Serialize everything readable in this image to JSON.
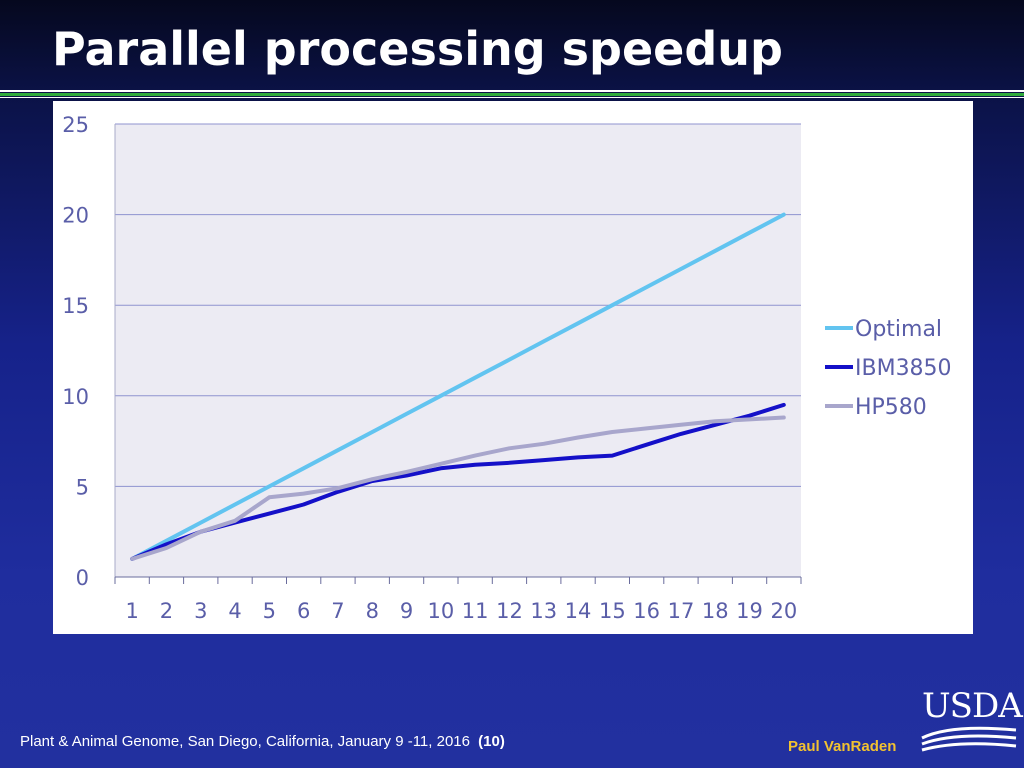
{
  "slide": {
    "title": "Parallel processing speedup",
    "footer": "Plant & Animal Genome, San Diego,  California, January  9 -11, 2016",
    "page_number": "(10)",
    "author": "Paul VanRaden",
    "logo_text": "USDA"
  },
  "colors": {
    "Optimal": "#62c4f0",
    "IBM3850": "#1410c8",
    "HP580": "#a8a6cc",
    "axis_text": "#5a5ea8",
    "plot_bg": "#ecebf3",
    "grid": "#8f93cf"
  },
  "chart_data": {
    "type": "line",
    "title": "",
    "xlabel": "",
    "ylabel": "",
    "categories": [
      "1",
      "2",
      "3",
      "4",
      "5",
      "6",
      "7",
      "8",
      "9",
      "10",
      "11",
      "12",
      "13",
      "14",
      "15",
      "16",
      "17",
      "18",
      "19",
      "20"
    ],
    "ylim": [
      0,
      25
    ],
    "yticks": [
      0,
      5,
      10,
      15,
      20,
      25
    ],
    "grid": true,
    "legend_position": "right",
    "series": [
      {
        "name": "Optimal",
        "values": [
          1,
          2,
          3,
          4,
          5,
          6,
          7,
          8,
          9,
          10,
          11,
          12,
          13,
          14,
          15,
          16,
          17,
          18,
          19,
          20
        ]
      },
      {
        "name": "IBM3850",
        "values": [
          1,
          1.8,
          2.5,
          3.0,
          3.5,
          4.0,
          4.7,
          5.3,
          5.6,
          6.0,
          6.2,
          6.3,
          6.45,
          6.6,
          6.7,
          7.3,
          7.9,
          8.4,
          8.9,
          9.5
        ]
      },
      {
        "name": "HP580",
        "values": [
          1,
          1.6,
          2.5,
          3.1,
          4.4,
          4.6,
          4.9,
          5.4,
          5.8,
          6.25,
          6.7,
          7.1,
          7.35,
          7.7,
          8.0,
          8.2,
          8.4,
          8.6,
          8.7,
          8.8
        ]
      }
    ]
  }
}
